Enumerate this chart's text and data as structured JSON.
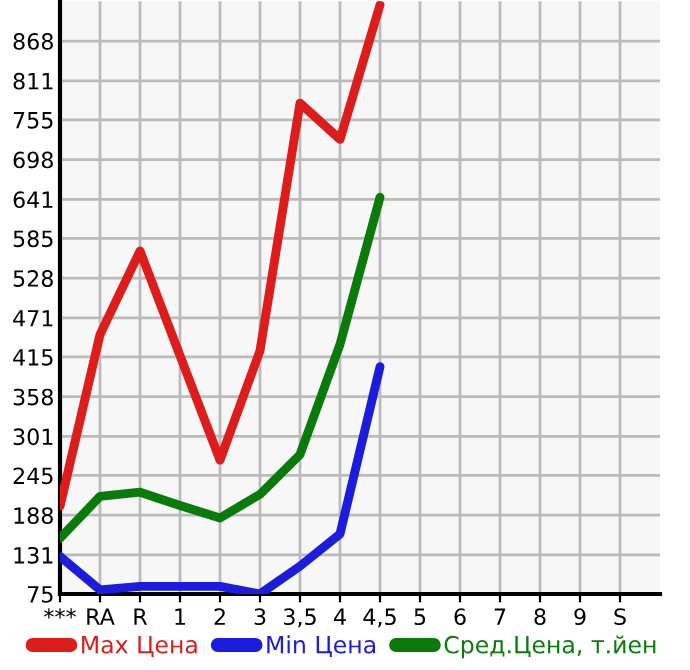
{
  "chart_data": {
    "type": "line",
    "categories": [
      "***",
      "RA",
      "R",
      "1",
      "2",
      "3",
      "3,5",
      "4",
      "4,5",
      "5",
      "6",
      "7",
      "8",
      "9",
      "S"
    ],
    "series": [
      {
        "name": "Max Цена",
        "color": "#dd1c1c",
        "values": [
          201,
          447,
          567,
          417,
          267,
          424,
          779,
          727,
          920,
          null,
          null,
          null,
          null,
          null,
          null
        ]
      },
      {
        "name": "Min Цена",
        "color": "#1c1cdd",
        "values": [
          129,
          81,
          86,
          86,
          86,
          75,
          115,
          161,
          401,
          null,
          null,
          null,
          null,
          null,
          null
        ]
      },
      {
        "name": "Сред.Цена, т.йен",
        "color": "#0a7a0a",
        "values": [
          155,
          215,
          221,
          202,
          184,
          218,
          275,
          433,
          644,
          null,
          null,
          null,
          null,
          null,
          null
        ]
      }
    ],
    "ylim": [
      75,
      925
    ],
    "yticks": [
      75,
      131,
      188,
      245,
      301,
      358,
      415,
      471,
      528,
      585,
      641,
      698,
      755,
      811,
      868
    ],
    "grid": true,
    "legend": "bottom",
    "marker": "none",
    "line_style": "solid"
  }
}
